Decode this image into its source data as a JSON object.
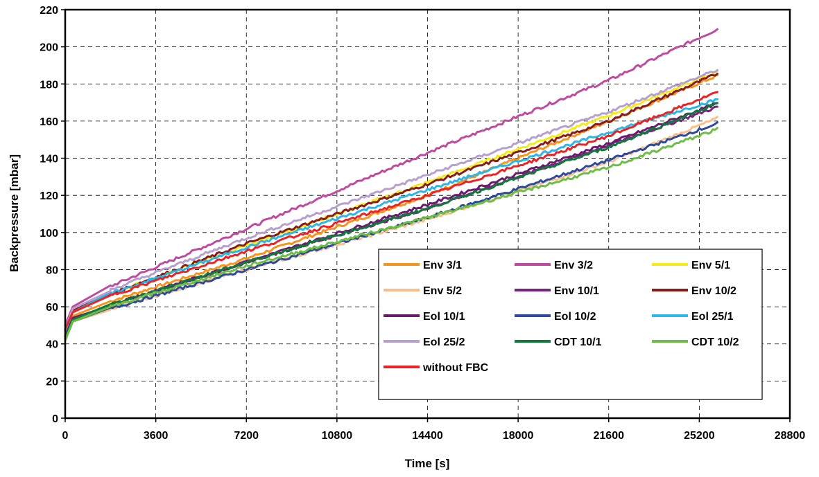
{
  "chart_data": {
    "type": "line",
    "title": "",
    "xlabel": "Time [s]",
    "ylabel": "Backpressure [mbar]",
    "xlim": [
      0,
      28800
    ],
    "ylim": [
      0,
      220
    ],
    "xticks": [
      0,
      3600,
      7200,
      10800,
      14400,
      18000,
      21600,
      25200,
      28800
    ],
    "yticks": [
      0,
      20,
      40,
      60,
      80,
      100,
      120,
      140,
      160,
      180,
      200,
      220
    ],
    "grid": true,
    "legend_position": "bottom-right",
    "series": [
      {
        "name": "Env 3/1",
        "color": "#F7941D",
        "x": [
          0,
          300,
          1800,
          7200,
          14400,
          21600,
          26000
        ],
        "y": [
          45,
          55,
          63,
          86,
          120,
          160,
          185
        ]
      },
      {
        "name": "Env 3/2",
        "color": "#BE4B9F",
        "x": [
          0,
          300,
          1800,
          7200,
          14400,
          21600,
          26000
        ],
        "y": [
          50,
          60,
          71,
          102,
          143,
          182,
          210
        ]
      },
      {
        "name": "Env 5/1",
        "color": "#F6EB14",
        "x": [
          0,
          300,
          1800,
          7200,
          14400,
          21600,
          26000
        ],
        "y": [
          47,
          57,
          67,
          93,
          127,
          163,
          187
        ]
      },
      {
        "name": "Env 5/2",
        "color": "#F9C08E",
        "x": [
          0,
          300,
          1800,
          7200,
          14400,
          21600,
          26000
        ],
        "y": [
          42,
          52,
          59,
          80,
          107,
          138,
          162
        ]
      },
      {
        "name": "Env 10/1",
        "color": "#7C2181",
        "x": [
          0,
          300,
          1800,
          7200,
          14400,
          21600,
          26000
        ],
        "y": [
          44,
          54,
          61,
          84,
          113,
          147,
          168
        ]
      },
      {
        "name": "Env 10/2",
        "color": "#8B1A1A",
        "x": [
          0,
          300,
          1800,
          7200,
          14400,
          21600,
          26000
        ],
        "y": [
          48,
          58,
          67,
          94,
          126,
          160,
          186
        ]
      },
      {
        "name": "Eol 10/1",
        "color": "#6A1B6E",
        "x": [
          0,
          300,
          1800,
          7200,
          14400,
          21600,
          26000
        ],
        "y": [
          44,
          54,
          61,
          84,
          115,
          148,
          170
        ]
      },
      {
        "name": "Eol 10/2",
        "color": "#2E4A9E",
        "x": [
          0,
          300,
          1800,
          7200,
          14400,
          21600,
          26000
        ],
        "y": [
          42,
          52,
          59,
          80,
          108,
          139,
          159
        ]
      },
      {
        "name": "Eol 25/1",
        "color": "#29B6E8",
        "x": [
          0,
          300,
          1800,
          7200,
          14400,
          21600,
          26000
        ],
        "y": [
          47,
          57,
          67,
          92,
          123,
          154,
          172
        ]
      },
      {
        "name": "Eol 25/2",
        "color": "#B79FD0",
        "x": [
          0,
          300,
          1800,
          7200,
          14400,
          21600,
          26000
        ],
        "y": [
          48,
          59,
          69,
          97,
          131,
          165,
          188
        ]
      },
      {
        "name": "CDT 10/1",
        "color": "#0F7A3A",
        "x": [
          0,
          300,
          1800,
          7200,
          14400,
          21600,
          26000
        ],
        "y": [
          43,
          53,
          61,
          84,
          113,
          146,
          170
        ]
      },
      {
        "name": "CDT 10/2",
        "color": "#6CBE45",
        "x": [
          0,
          300,
          1800,
          7200,
          14400,
          21600,
          26000
        ],
        "y": [
          42,
          52,
          60,
          82,
          108,
          135,
          156
        ]
      },
      {
        "name": "without FBC",
        "color": "#EE2224",
        "x": [
          0,
          300,
          1800,
          7200,
          14400,
          21600,
          26000
        ],
        "y": [
          48,
          57,
          66,
          90,
          120,
          152,
          176
        ]
      }
    ]
  }
}
